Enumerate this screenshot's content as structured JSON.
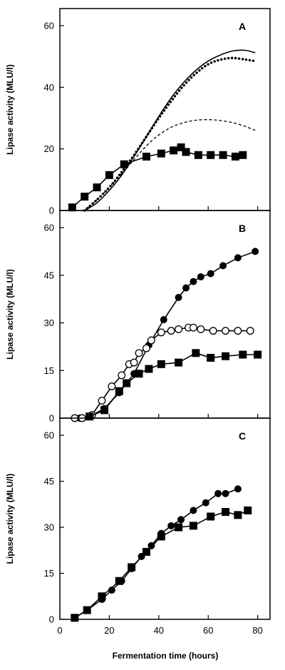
{
  "chart_data": [
    {
      "type": "line",
      "panel_label": "A",
      "xlim": [
        0,
        85
      ],
      "ylim": [
        0,
        65
      ],
      "x_ticks": [
        0,
        20,
        40,
        60,
        80
      ],
      "y_ticks": [
        0,
        20,
        40,
        60
      ],
      "ylabel": "Lipase activity (MLU/l)",
      "series": [
        {
          "marker": "filled-square",
          "x": [
            5,
            10,
            15,
            20,
            26,
            35,
            41,
            46,
            49,
            51,
            56,
            61,
            66,
            71,
            74
          ],
          "y": [
            1,
            4.5,
            7.5,
            11.5,
            15,
            17.5,
            18.5,
            19.5,
            20.5,
            19,
            18,
            18,
            18,
            17.5,
            18
          ]
        },
        {
          "style": "solid",
          "x": [
            10,
            15,
            20,
            25,
            30,
            35,
            40,
            45,
            50,
            55,
            60,
            65,
            70,
            75,
            79
          ],
          "y": [
            0,
            2.5,
            6.5,
            11.5,
            17.5,
            24,
            30.5,
            36.5,
            41.5,
            45.5,
            48.5,
            50.5,
            51.8,
            52,
            51.2
          ]
        },
        {
          "style": "dotted",
          "x": [
            10,
            15,
            20,
            25,
            30,
            35,
            40,
            45,
            50,
            55,
            60,
            65,
            70,
            75,
            79
          ],
          "y": [
            0,
            3.5,
            7.5,
            12.5,
            18,
            24,
            30,
            35.5,
            40.5,
            44.5,
            47.5,
            49,
            49.5,
            49,
            48.5
          ]
        },
        {
          "style": "dashed",
          "x": [
            10,
            15,
            20,
            25,
            30,
            35,
            40,
            45,
            50,
            55,
            60,
            65,
            70,
            75,
            79
          ],
          "y": [
            0,
            3.5,
            7.5,
            12,
            16.5,
            21,
            24.5,
            27,
            28.5,
            29.3,
            29.5,
            29.2,
            28.5,
            27.3,
            26
          ]
        }
      ]
    },
    {
      "type": "line",
      "panel_label": "B",
      "xlim": [
        0,
        85
      ],
      "ylim": [
        0,
        65
      ],
      "x_ticks": [
        0,
        20,
        40,
        60,
        80
      ],
      "y_ticks": [
        0,
        15,
        30,
        45,
        60
      ],
      "ylabel": "Lipase activity (MLU/l)",
      "series": [
        {
          "marker": "filled-circle",
          "x": [
            8,
            12,
            18,
            24,
            30,
            36,
            42,
            48,
            51,
            54,
            57,
            61,
            66,
            72,
            79
          ],
          "y": [
            0,
            0.5,
            3,
            8,
            14,
            23,
            31,
            38,
            41,
            43,
            44.5,
            45.5,
            48,
            50.5,
            52.5
          ]
        },
        {
          "marker": "open-circle",
          "x": [
            6,
            9,
            13,
            17,
            21,
            25,
            28,
            30,
            32,
            35,
            37,
            41,
            45,
            48,
            52,
            54,
            57,
            62,
            67,
            72,
            77
          ],
          "y": [
            0,
            0,
            1,
            5.5,
            10,
            13.5,
            17,
            17.5,
            20.5,
            22,
            24.5,
            27,
            27.5,
            28,
            28.5,
            28.5,
            28,
            27.5,
            27.5,
            27.5,
            27.5
          ]
        },
        {
          "marker": "filled-square",
          "x": [
            12,
            18,
            24,
            27,
            32,
            36,
            41,
            48,
            55,
            61,
            67,
            74,
            80
          ],
          "y": [
            0.5,
            2.5,
            8.5,
            11,
            14,
            15.5,
            17,
            17.5,
            20.5,
            19,
            19.5,
            20,
            20
          ]
        }
      ]
    },
    {
      "type": "line",
      "panel_label": "C",
      "xlim": [
        0,
        85
      ],
      "ylim": [
        0,
        65
      ],
      "x_ticks": [
        0,
        20,
        40,
        60,
        80
      ],
      "y_ticks": [
        0,
        15,
        30,
        45,
        60
      ],
      "xlabel": "Fermentation time (hours)",
      "ylabel": "Lipase activity (MLU/l)",
      "series": [
        {
          "marker": "filled-circle",
          "x": [
            6,
            11,
            17,
            21,
            25,
            29,
            33,
            37,
            41,
            45,
            49,
            54,
            59,
            64,
            67,
            72
          ],
          "y": [
            0.5,
            3,
            6.5,
            9.5,
            12.5,
            16.5,
            20.5,
            24,
            28,
            30.5,
            32.5,
            35.5,
            38,
            41,
            41,
            42.5
          ]
        },
        {
          "marker": "filled-square",
          "x": [
            6,
            11,
            17,
            24,
            29,
            35,
            41,
            48,
            54,
            61,
            67,
            72,
            76
          ],
          "y": [
            0.5,
            3,
            7.5,
            12.5,
            17,
            22,
            27,
            30,
            30.5,
            33.5,
            35,
            34,
            35.5
          ]
        }
      ]
    }
  ]
}
